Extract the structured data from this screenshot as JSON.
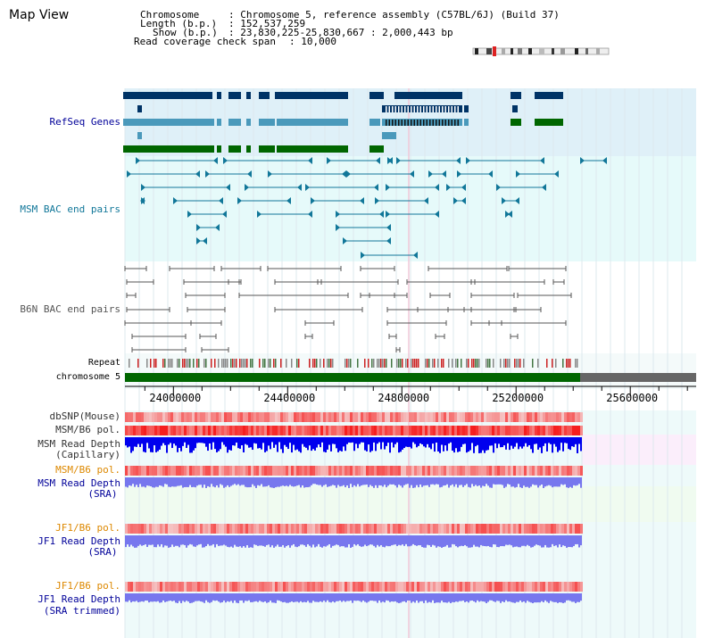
{
  "header": {
    "title": "Map View",
    "chromosome_key": "Chromosome",
    "chromosome_value": ": Chromosome 5, reference assembly (C57BL/6J) (Build 37)",
    "length_key": "Length (b.p.)",
    "length_value": ": 152,537,259",
    "show_key": "Show (b.p.)",
    "show_value": ": 23,830,225-25,830,667 : 2,000,443 bp",
    "coverage_key": "Read coverage check span",
    "coverage_value": ": 10,000"
  },
  "tracks": {
    "refseq": "RefSeq Genes",
    "msm_bac": "MSM BAC end pairs",
    "b6n_bac": "B6N BAC end pairs",
    "repeat": "Repeat",
    "chromosome": "chromosome 5",
    "dbsnp": "dbSNP(Mouse)",
    "msm_b6_pol_1": "MSM/B6 pol.",
    "msm_read_depth_cap_1": "MSM Read Depth",
    "msm_read_depth_cap_2": "(Capillary)",
    "msm_b6_pol_2": "MSM/B6 pol.",
    "msm_read_depth_sra_1": "MSM Read Depth",
    "msm_read_depth_sra_2": "(SRA)",
    "jf1_b6_pol_1": "JF1/B6 pol.",
    "jf1_read_depth_sra_1": "JF1 Read Depth",
    "jf1_read_depth_sra_2": "(SRA)",
    "jf1_b6_pol_2": "JF1/B6 pol.",
    "jf1_read_depth_trim_1": "JF1 Read Depth",
    "jf1_read_depth_trim_2": "(SRA trimmed)"
  },
  "axis": {
    "ticks": [
      "24000000",
      "24400000",
      "24800000",
      "25200000",
      "25600000"
    ],
    "tick_values": [
      24000000,
      24400000,
      24800000,
      25200000,
      25600000
    ],
    "start": 23830225,
    "end": 25830667
  },
  "colors": {
    "refseq_bg": "#dff0f8",
    "bac_bg": "#e6fafa",
    "gene_dark": "#003366",
    "gene_mid": "#4a99bb",
    "gene_green": "#006600",
    "msm_pair": "#117799",
    "b6n_pair": "#555555",
    "chrom_green": "#006600",
    "chrom_gray": "#666666",
    "read_depth_cap": "#0000ee",
    "read_depth_sra": "#7777ee",
    "label_blue": "#000099",
    "label_orange": "#dd8800",
    "label_dark": "#333333"
  }
}
